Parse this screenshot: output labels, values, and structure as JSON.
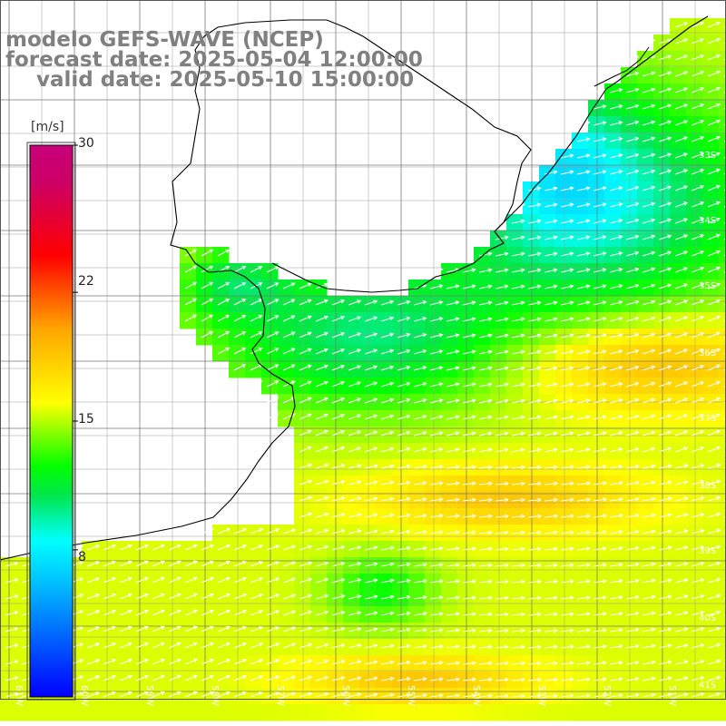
{
  "title": {
    "model": "modelo GEFS-WAVE (NCEP)",
    "forecast": "forecast date: 2025-05-04 12:00:00",
    "valid": "valid date: 2025-05-10 15:00:00"
  },
  "colorbar": {
    "unit": "[m/s]",
    "ticks": [
      "8",
      "15",
      "22",
      "30"
    ],
    "tick_values": [
      8,
      15,
      22,
      30
    ],
    "min": 0,
    "max": 30,
    "colors": [
      "#0000ff",
      "#00c8ff",
      "#00ffff",
      "#00e64a",
      "#00ff00",
      "#ffff00",
      "#ffa500",
      "#ff0000",
      "#cc0066",
      "#c8007a"
    ]
  },
  "map": {
    "lon_range": [
      -61,
      -50
    ],
    "lat_range": [
      -41.5,
      -36.2
    ],
    "lon_labels": [
      "61W",
      "60W",
      "59W",
      "58W",
      "57W",
      "56W",
      "55W",
      "54W",
      "53W",
      "52W",
      "51W"
    ],
    "lat_labels": [
      "33S",
      "34S",
      "35S",
      "36S",
      "37S",
      "38S",
      "39S",
      "40S",
      "41S"
    ],
    "grid": true,
    "arrow_color": "#ffffff",
    "coast_color": "#000000"
  }
}
